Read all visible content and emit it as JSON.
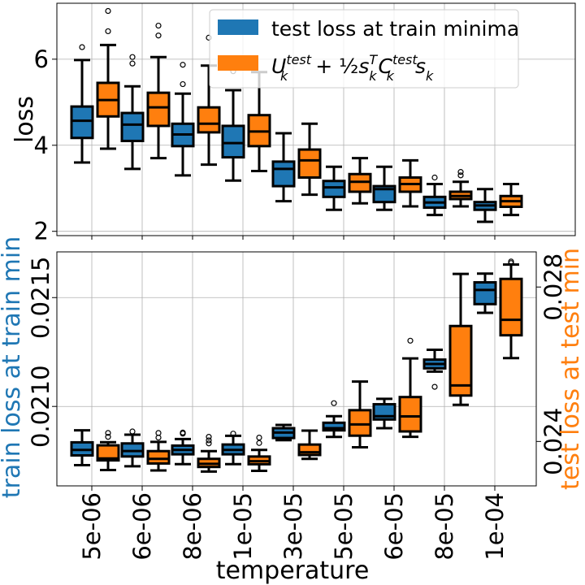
{
  "chart_data": [
    {
      "type": "boxplot",
      "panel": "top",
      "ylabel": "loss",
      "ylim": [
        1.9,
        7.3
      ],
      "yticks": [
        2,
        4,
        6
      ],
      "categories": [
        "5e-06",
        "6e-06",
        "8e-06",
        "1e-05",
        "3e-05",
        "5e-05",
        "6e-05",
        "8e-05",
        "1e-04"
      ],
      "legend": {
        "placement": "top-right",
        "entries": [
          "test loss at train minima",
          "U_k^test + ½ s_k^T C_k^test s_k"
        ]
      },
      "series": [
        {
          "name": "test loss at train minima",
          "color": "#1f77b4",
          "boxes": [
            {
              "whislo": 3.6,
              "q1": 4.17,
              "med": 4.57,
              "q3": 4.9,
              "whishi": 5.98,
              "fliers": [
                6.28
              ]
            },
            {
              "whislo": 3.45,
              "q1": 4.1,
              "med": 4.48,
              "q3": 4.75,
              "whishi": 5.37,
              "fliers": [
                5.9,
                6.05
              ]
            },
            {
              "whislo": 3.3,
              "q1": 3.98,
              "med": 4.25,
              "q3": 4.5,
              "whishi": 5.2,
              "fliers": [
                5.42,
                5.87
              ]
            },
            {
              "whislo": 3.18,
              "q1": 3.72,
              "med": 4.05,
              "q3": 4.45,
              "whishi": 5.28,
              "fliers": [
                5.72
              ]
            },
            {
              "whislo": 2.7,
              "q1": 3.05,
              "med": 3.45,
              "q3": 3.62,
              "whishi": 4.28,
              "fliers": []
            },
            {
              "whislo": 2.5,
              "q1": 2.8,
              "med": 3.02,
              "q3": 3.17,
              "whishi": 3.5,
              "fliers": []
            },
            {
              "whislo": 2.5,
              "q1": 2.68,
              "med": 2.98,
              "q3": 3.05,
              "whishi": 3.5,
              "fliers": []
            },
            {
              "whislo": 2.38,
              "q1": 2.55,
              "med": 2.67,
              "q3": 2.8,
              "whishi": 3.1,
              "fliers": [
                3.25
              ]
            },
            {
              "whislo": 2.22,
              "q1": 2.5,
              "med": 2.6,
              "q3": 2.68,
              "whishi": 2.98,
              "fliers": []
            }
          ]
        },
        {
          "name": "U_k^test + ½ s_k^T C_k^test s_k",
          "color": "#ff7f0e",
          "boxes": [
            {
              "whislo": 3.92,
              "q1": 4.67,
              "med": 5.05,
              "q3": 5.45,
              "whishi": 6.33,
              "fliers": [
                6.65,
                7.12
              ]
            },
            {
              "whislo": 3.7,
              "q1": 4.45,
              "med": 4.88,
              "q3": 5.22,
              "whishi": 6.05,
              "fliers": [
                6.55,
                6.78
              ]
            },
            {
              "whislo": 3.55,
              "q1": 4.3,
              "med": 4.5,
              "q3": 4.88,
              "whishi": 5.85,
              "fliers": [
                6.5
              ]
            },
            {
              "whislo": 3.4,
              "q1": 3.98,
              "med": 4.32,
              "q3": 4.7,
              "whishi": 5.7,
              "fliers": []
            },
            {
              "whislo": 2.85,
              "q1": 3.25,
              "med": 3.65,
              "q3": 3.9,
              "whishi": 4.5,
              "fliers": []
            },
            {
              "whislo": 2.65,
              "q1": 2.92,
              "med": 3.15,
              "q3": 3.33,
              "whishi": 3.7,
              "fliers": []
            },
            {
              "whislo": 2.58,
              "q1": 2.92,
              "med": 3.1,
              "q3": 3.25,
              "whishi": 3.65,
              "fliers": []
            },
            {
              "whislo": 2.58,
              "q1": 2.75,
              "med": 2.82,
              "q3": 2.92,
              "whishi": 3.15,
              "fliers": [
                3.3,
                3.38
              ]
            },
            {
              "whislo": 2.38,
              "q1": 2.57,
              "med": 2.7,
              "q3": 2.82,
              "whishi": 3.1,
              "fliers": []
            }
          ]
        }
      ]
    },
    {
      "type": "boxplot",
      "panel": "bottom",
      "xlabel": "temperature",
      "categories": [
        "5e-06",
        "6e-06",
        "8e-06",
        "1e-05",
        "3e-05",
        "5e-05",
        "6e-05",
        "8e-05",
        "1e-04"
      ],
      "left_axis": {
        "ylabel": "train loss at train min",
        "color": "#1f77b4",
        "ylim": [
          0.020635,
          0.02171
        ],
        "ticks": [
          0.021,
          0.0215
        ],
        "tick_labels": [
          "0.0210",
          "0.0215"
        ]
      },
      "right_axis": {
        "ylabel": "test loss at test min",
        "color": "#ff7f0e",
        "ylim": [
          0.02285,
          0.02891
        ],
        "ticks": [
          0.024,
          0.028
        ],
        "tick_labels": [
          "0.024",
          "0.028"
        ]
      },
      "series": [
        {
          "name": "train loss at train min",
          "axis": "left",
          "color": "#1f77b4",
          "boxes": [
            {
              "whislo": 0.02073,
              "q1": 0.020775,
              "med": 0.0208,
              "q3": 0.020835,
              "whishi": 0.02089,
              "fliers": []
            },
            {
              "whislo": 0.020725,
              "q1": 0.02077,
              "med": 0.020795,
              "q3": 0.02083,
              "whishi": 0.02087,
              "fliers": [
                0.020885
              ]
            },
            {
              "whislo": 0.020735,
              "q1": 0.02078,
              "med": 0.0208,
              "q3": 0.02082,
              "whishi": 0.02085,
              "fliers": [
                0.020875,
                0.02088
              ]
            },
            {
              "whislo": 0.020735,
              "q1": 0.02078,
              "med": 0.0208,
              "q3": 0.020825,
              "whishi": 0.020865,
              "fliers": [
                0.020875
              ]
            },
            {
              "whislo": 0.020845,
              "q1": 0.020855,
              "med": 0.02088,
              "q3": 0.0209,
              "whishi": 0.020915,
              "fliers": []
            },
            {
              "whislo": 0.02086,
              "q1": 0.02089,
              "med": 0.0209,
              "q3": 0.020925,
              "whishi": 0.020955,
              "fliers": [
                0.021015
              ]
            },
            {
              "whislo": 0.0209,
              "q1": 0.02094,
              "med": 0.020955,
              "q3": 0.02101,
              "whishi": 0.021035,
              "fliers": []
            },
            {
              "whislo": 0.02116,
              "q1": 0.021175,
              "med": 0.021195,
              "q3": 0.021215,
              "whishi": 0.02126,
              "fliers": [
                0.02109
              ]
            },
            {
              "whislo": 0.02143,
              "q1": 0.02147,
              "med": 0.021535,
              "q3": 0.02157,
              "whishi": 0.02161,
              "fliers": []
            }
          ]
        },
        {
          "name": "test loss at test min",
          "axis": "right",
          "color": "#ff7f0e",
          "boxes": [
            {
              "whislo": 0.02326,
              "q1": 0.02351,
              "med": 0.02356,
              "q3": 0.0239,
              "whishi": 0.02398,
              "fliers": [
                0.02412,
                0.02422
              ]
            },
            {
              "whislo": 0.02325,
              "q1": 0.02343,
              "med": 0.02355,
              "q3": 0.02375,
              "whishi": 0.02399,
              "fliers": [
                0.0241,
                0.02422
              ]
            },
            {
              "whislo": 0.02322,
              "q1": 0.02334,
              "med": 0.02342,
              "q3": 0.02355,
              "whishi": 0.02375,
              "fliers": [
                0.02395,
                0.02403,
                0.02412
              ]
            },
            {
              "whislo": 0.02324,
              "q1": 0.02341,
              "med": 0.02349,
              "q3": 0.02361,
              "whishi": 0.02378,
              "fliers": [
                0.02396,
                0.0241
              ]
            },
            {
              "whislo": 0.02355,
              "q1": 0.02365,
              "med": 0.02372,
              "q3": 0.02392,
              "whishi": 0.02428,
              "fliers": []
            },
            {
              "whislo": 0.02385,
              "q1": 0.02415,
              "med": 0.02444,
              "q3": 0.02481,
              "whishi": 0.02555,
              "fliers": []
            },
            {
              "whislo": 0.02412,
              "q1": 0.02426,
              "med": 0.02465,
              "q3": 0.02515,
              "whishi": 0.02615,
              "fliers": [
                0.02661
              ]
            },
            {
              "whislo": 0.02495,
              "q1": 0.02519,
              "med": 0.02545,
              "q3": 0.02699,
              "whishi": 0.02834,
              "fliers": []
            },
            {
              "whislo": 0.02616,
              "q1": 0.02675,
              "med": 0.02715,
              "q3": 0.02821,
              "whishi": 0.02858,
              "fliers": [
                0.02862,
                0.02866
              ]
            }
          ]
        }
      ]
    }
  ]
}
